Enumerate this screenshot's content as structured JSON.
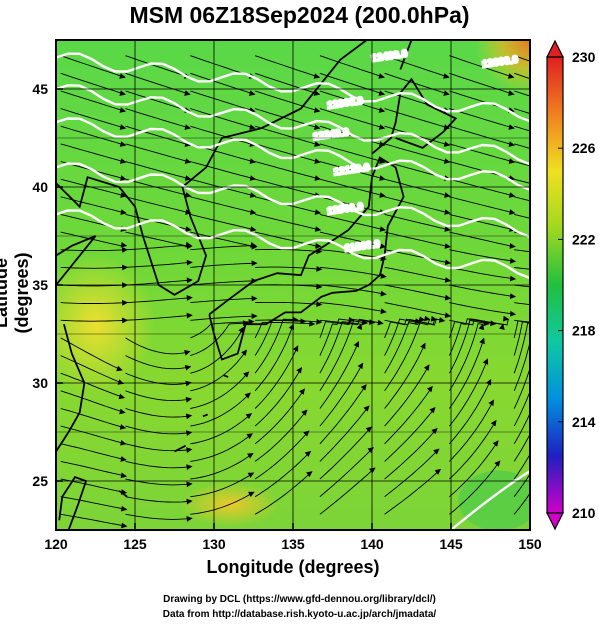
{
  "chart_data": {
    "type": "heatmap",
    "title": "MSM 06Z18Sep2024 (200.0hPa)",
    "xlabel": "Longitude (degrees)",
    "ylabel": "Latitude  (degrees)",
    "xlim": [
      120,
      150
    ],
    "ylim": [
      22.5,
      47.5
    ],
    "xticks": [
      120,
      125,
      130,
      135,
      140,
      145,
      150
    ],
    "yticks": [
      25,
      30,
      35,
      40,
      45
    ],
    "grid": true,
    "colorbar": {
      "min": 210,
      "max": 230,
      "ticks": [
        210,
        214,
        218,
        222,
        226,
        230
      ],
      "colors": [
        "#d000c8",
        "#2020c0",
        "#0090e0",
        "#10c8a0",
        "#20c040",
        "#a0d820",
        "#f0e020",
        "#f08020",
        "#e02020"
      ]
    },
    "height_contours": [
      {
        "label": "11880.0",
        "value": 11880
      },
      {
        "label": "12000.0",
        "value": 12000
      },
      {
        "label": "12120.0",
        "value": 12120
      },
      {
        "label": "12240.0",
        "value": 12240
      },
      {
        "label": "12360.0",
        "value": 12360
      },
      {
        "label": "12480.0",
        "value": 12480
      },
      {
        "label": "12600.0",
        "value": 12600
      }
    ]
  },
  "credits": {
    "drawing": "Drawing by DCL (https://www.gfd-dennou.org/library/dcl/)",
    "data": "Data from http://database.rish.kyoto-u.ac.jp/arch/jmadata/"
  }
}
